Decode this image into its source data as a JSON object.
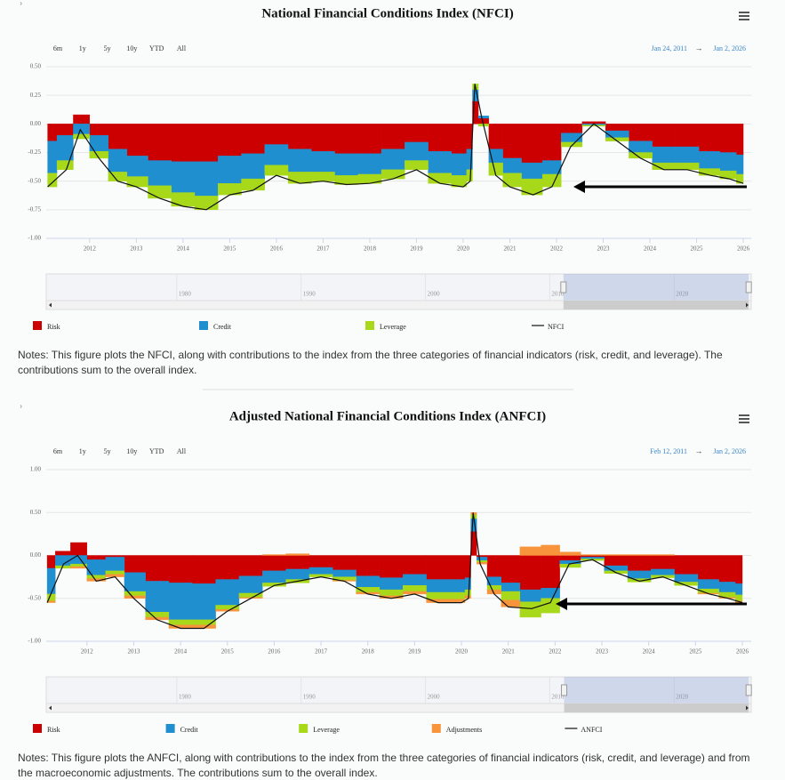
{
  "chart_data": [
    {
      "type": "area",
      "stacked": true,
      "toggle": "›",
      "title": "National Financial Conditions Index (NFCI)",
      "range_buttons": [
        "6m",
        "1y",
        "5y",
        "10y",
        "YTD",
        "All"
      ],
      "date_from": "Jan 24, 2011",
      "range_separator": "→",
      "date_to": "Jan 2, 2026",
      "x": [
        2011.1,
        2011.5,
        2011.8,
        2012.2,
        2012.6,
        2013.0,
        2013.5,
        2014.0,
        2014.5,
        2015.0,
        2015.5,
        2016.0,
        2016.5,
        2017.0,
        2017.5,
        2018.0,
        2018.5,
        2019.0,
        2019.5,
        2020.0,
        2020.15,
        2020.25,
        2020.4,
        2020.7,
        2021.0,
        2021.5,
        2021.9,
        2022.3,
        2022.8,
        2023.3,
        2023.8,
        2024.3,
        2024.8,
        2025.3,
        2025.7,
        2026.0
      ],
      "xlim": [
        2011.07,
        2026.17
      ],
      "xticks": [
        2012,
        2013,
        2014,
        2015,
        2016,
        2017,
        2018,
        2019,
        2020,
        2021,
        2022,
        2023,
        2024,
        2025,
        2026
      ],
      "ylim": [
        -1,
        0.5
      ],
      "yticks": [
        {
          "value": -1,
          "label": "-1.00"
        },
        {
          "value": -0.75,
          "label": "-0.75"
        },
        {
          "value": -0.5,
          "label": "-0.50"
        },
        {
          "value": -0.25,
          "label": "-0.25"
        },
        {
          "value": 0,
          "label": "0.00"
        },
        {
          "value": 0.25,
          "label": "0.25"
        },
        {
          "value": 0.5,
          "label": "0.50"
        }
      ],
      "grid": true,
      "series": [
        {
          "name": "Risk",
          "color": "#cc0000",
          "values": [
            -0.15,
            -0.1,
            0.08,
            -0.1,
            -0.22,
            -0.28,
            -0.32,
            -0.33,
            -0.33,
            -0.28,
            -0.26,
            -0.18,
            -0.22,
            -0.24,
            -0.26,
            -0.26,
            -0.22,
            -0.16,
            -0.24,
            -0.26,
            -0.22,
            0.2,
            0.05,
            -0.22,
            -0.3,
            -0.34,
            -0.32,
            -0.08,
            0.02,
            -0.06,
            -0.15,
            -0.2,
            -0.2,
            -0.24,
            -0.25,
            -0.27
          ]
        },
        {
          "name": "Credit",
          "color": "#1f8fd0",
          "values": [
            -0.28,
            -0.22,
            -0.09,
            -0.14,
            -0.2,
            -0.18,
            -0.22,
            -0.27,
            -0.3,
            -0.24,
            -0.22,
            -0.18,
            -0.2,
            -0.18,
            -0.19,
            -0.18,
            -0.18,
            -0.16,
            -0.19,
            -0.19,
            -0.18,
            0.1,
            0.02,
            -0.12,
            -0.13,
            -0.14,
            -0.12,
            -0.08,
            -0.01,
            -0.06,
            -0.1,
            -0.14,
            -0.14,
            -0.15,
            -0.16,
            -0.17
          ]
        },
        {
          "name": "Leverage",
          "color": "#a8d81a",
          "values": [
            -0.12,
            -0.08,
            -0.04,
            -0.06,
            -0.08,
            -0.09,
            -0.11,
            -0.12,
            -0.12,
            -0.1,
            -0.1,
            -0.09,
            -0.1,
            -0.08,
            -0.08,
            -0.08,
            -0.08,
            -0.08,
            -0.09,
            -0.1,
            -0.1,
            0.05,
            -0.02,
            -0.11,
            -0.12,
            -0.14,
            -0.11,
            -0.04,
            -0.01,
            -0.03,
            -0.05,
            -0.06,
            -0.06,
            -0.06,
            -0.07,
            -0.08
          ]
        },
        {
          "name": "NFCI",
          "type": "line",
          "color": "#111111",
          "values": [
            -0.55,
            -0.4,
            -0.05,
            -0.3,
            -0.5,
            -0.55,
            -0.65,
            -0.72,
            -0.75,
            -0.62,
            -0.58,
            -0.45,
            -0.52,
            -0.5,
            -0.53,
            -0.52,
            -0.48,
            -0.4,
            -0.52,
            -0.55,
            -0.5,
            0.35,
            0.05,
            -0.45,
            -0.55,
            -0.62,
            -0.55,
            -0.2,
            0.0,
            -0.15,
            -0.3,
            -0.4,
            -0.4,
            -0.45,
            -0.48,
            -0.52
          ]
        }
      ],
      "navigator": {
        "xlim": [
          1969.5,
          2026.2
        ],
        "xticks": [
          1980,
          1990,
          2000,
          2010,
          2020
        ]
      },
      "notes": "Notes: This figure plots the NFCI, along with contributions to the index from the three categories of financial indicators (risk, credit, and leverage). The contributions sum to the overall index."
    },
    {
      "type": "area",
      "stacked": true,
      "toggle": "›",
      "title": "Adjusted National Financial Conditions Index (ANFCI)",
      "range_buttons": [
        "6m",
        "1y",
        "5y",
        "10y",
        "YTD",
        "All"
      ],
      "date_from": "Feb 12, 2011",
      "range_separator": "→",
      "date_to": "Jan 2, 2026",
      "x": [
        2011.15,
        2011.5,
        2011.8,
        2012.2,
        2012.6,
        2013.0,
        2013.5,
        2014.0,
        2014.5,
        2015.0,
        2015.5,
        2016.0,
        2016.5,
        2017.0,
        2017.5,
        2018.0,
        2018.5,
        2019.0,
        2019.5,
        2020.0,
        2020.15,
        2020.25,
        2020.4,
        2020.7,
        2021.0,
        2021.5,
        2021.9,
        2022.3,
        2022.8,
        2023.3,
        2023.8,
        2024.3,
        2024.8,
        2025.3,
        2025.7,
        2026.0
      ],
      "xlim": [
        2011.13,
        2026.19
      ],
      "xticks": [
        2012,
        2013,
        2014,
        2015,
        2016,
        2017,
        2018,
        2019,
        2020,
        2021,
        2022,
        2023,
        2024,
        2025,
        2026
      ],
      "ylim": [
        -1,
        1
      ],
      "yticks": [
        {
          "value": -1,
          "label": "-1.00"
        },
        {
          "value": -0.5,
          "label": "-0.50"
        },
        {
          "value": 0,
          "label": "0.00"
        },
        {
          "value": 0.5,
          "label": "0.50"
        },
        {
          "value": 1,
          "label": "1.00"
        }
      ],
      "grid": true,
      "series": [
        {
          "name": "Risk",
          "color": "#cc0000",
          "values": [
            -0.15,
            0.05,
            0.15,
            -0.05,
            -0.02,
            -0.2,
            -0.3,
            -0.32,
            -0.33,
            -0.28,
            -0.24,
            -0.18,
            -0.16,
            -0.14,
            -0.17,
            -0.24,
            -0.26,
            -0.22,
            -0.28,
            -0.28,
            -0.26,
            0.28,
            -0.02,
            -0.25,
            -0.32,
            -0.4,
            -0.38,
            -0.06,
            -0.02,
            -0.12,
            -0.18,
            -0.16,
            -0.22,
            -0.28,
            -0.31,
            -0.33
          ]
        },
        {
          "name": "Credit",
          "color": "#1f8fd0",
          "values": [
            -0.3,
            -0.12,
            -0.1,
            -0.18,
            -0.16,
            -0.22,
            -0.36,
            -0.43,
            -0.42,
            -0.3,
            -0.2,
            -0.14,
            -0.12,
            -0.08,
            -0.08,
            -0.13,
            -0.14,
            -0.13,
            -0.15,
            -0.15,
            -0.14,
            0.15,
            -0.04,
            -0.1,
            -0.1,
            -0.14,
            -0.12,
            -0.04,
            -0.02,
            -0.06,
            -0.09,
            -0.07,
            -0.09,
            -0.11,
            -0.12,
            -0.13
          ]
        },
        {
          "name": "Leverage",
          "color": "#a8d81a",
          "values": [
            -0.08,
            -0.03,
            -0.03,
            -0.04,
            -0.04,
            -0.05,
            -0.06,
            -0.06,
            -0.06,
            -0.05,
            -0.05,
            -0.04,
            -0.04,
            -0.03,
            -0.04,
            -0.06,
            -0.07,
            -0.07,
            -0.08,
            -0.08,
            -0.07,
            0.05,
            -0.02,
            -0.05,
            -0.1,
            -0.18,
            -0.17,
            -0.04,
            -0.02,
            -0.03,
            -0.04,
            -0.03,
            -0.04,
            -0.05,
            -0.06,
            -0.07
          ]
        },
        {
          "name": "Adjustments",
          "color": "#f7943c",
          "values": [
            -0.02,
            0.0,
            -0.02,
            -0.03,
            -0.03,
            -0.03,
            -0.03,
            -0.04,
            -0.04,
            -0.02,
            -0.01,
            0.01,
            0.02,
            0.0,
            -0.01,
            -0.02,
            -0.03,
            -0.03,
            -0.04,
            -0.04,
            -0.03,
            0.02,
            -0.02,
            -0.05,
            -0.08,
            0.1,
            0.12,
            0.04,
            0.01,
            0.01,
            0.01,
            0.01,
            0.0,
            -0.01,
            -0.01,
            -0.02
          ]
        },
        {
          "name": "ANFCI",
          "type": "line",
          "color": "#111111",
          "values": [
            -0.55,
            -0.1,
            0.0,
            -0.3,
            -0.25,
            -0.5,
            -0.75,
            -0.85,
            -0.85,
            -0.65,
            -0.5,
            -0.35,
            -0.3,
            -0.25,
            -0.3,
            -0.45,
            -0.5,
            -0.45,
            -0.55,
            -0.55,
            -0.5,
            0.5,
            -0.1,
            -0.45,
            -0.6,
            -0.62,
            -0.55,
            -0.1,
            -0.05,
            -0.2,
            -0.3,
            -0.25,
            -0.35,
            -0.45,
            -0.5,
            -0.55
          ]
        }
      ],
      "navigator": {
        "xlim": [
          1969.5,
          2026.2
        ],
        "xticks": [
          1980,
          1990,
          2000,
          2010,
          2020
        ]
      },
      "notes": "Notes: This figure plots the ANFCI, along with contributions to the index from the three categories of financial indicators (risk, credit, and leverage) and from the macroeconomic adjustments. The contributions sum to the overall index."
    }
  ]
}
